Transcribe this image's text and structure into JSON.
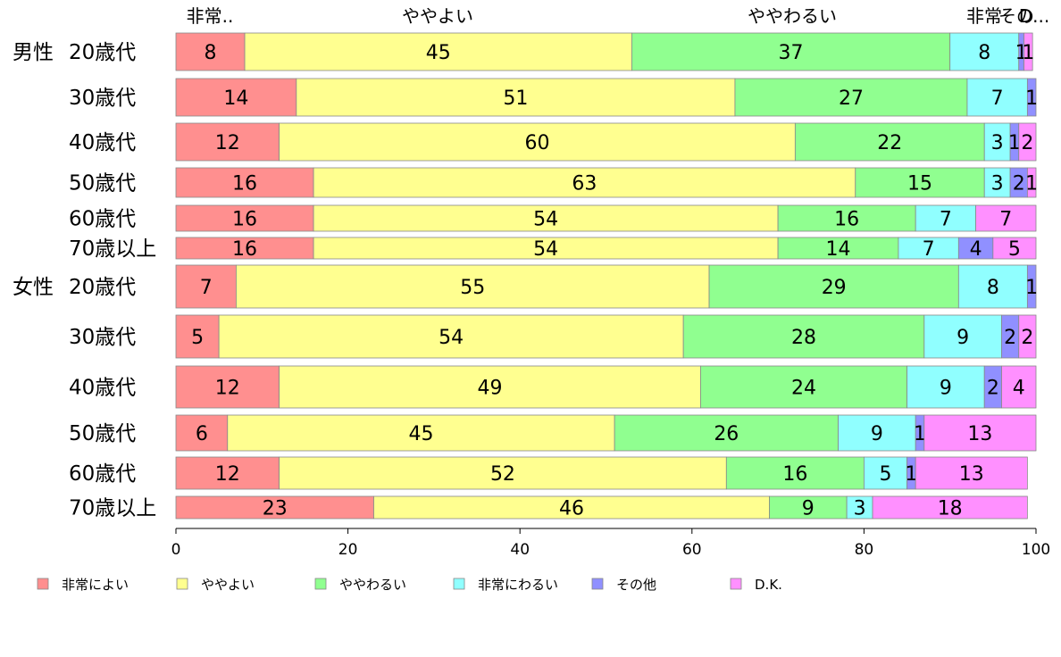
{
  "chart_data": {
    "type": "bar",
    "orientation": "horizontal",
    "stacked": true,
    "title": "",
    "xlabel": "",
    "ylabel": "",
    "xlim": [
      0,
      100
    ],
    "xticks": [
      "0",
      "20",
      "40",
      "60",
      "80",
      "100"
    ],
    "grid": false,
    "legend_position": "bottom",
    "top_labels": [
      "非常..",
      "ややよい",
      "ややわるい",
      "非常",
      "その",
      "D..."
    ],
    "groups": [
      "男性",
      "女性"
    ],
    "categories": [
      {
        "group": "男性",
        "label": "20歳代"
      },
      {
        "group": "",
        "label": "30歳代"
      },
      {
        "group": "",
        "label": "40歳代"
      },
      {
        "group": "",
        "label": "50歳代"
      },
      {
        "group": "",
        "label": "60歳代"
      },
      {
        "group": "",
        "label": "70歳以上"
      },
      {
        "group": "女性",
        "label": "20歳代"
      },
      {
        "group": "",
        "label": "30歳代"
      },
      {
        "group": "",
        "label": "40歳代"
      },
      {
        "group": "",
        "label": "50歳代"
      },
      {
        "group": "",
        "label": "60歳代"
      },
      {
        "group": "",
        "label": "70歳以上"
      }
    ],
    "series": [
      {
        "name": "非常によい",
        "color": "#ff8f8f",
        "values": [
          8,
          14,
          12,
          16,
          16,
          16,
          7,
          5,
          12,
          6,
          12,
          23
        ]
      },
      {
        "name": "ややよい",
        "color": "#ffff90",
        "values": [
          45,
          51,
          60,
          63,
          54,
          54,
          55,
          54,
          49,
          45,
          52,
          46
        ]
      },
      {
        "name": "ややわるい",
        "color": "#90ff90",
        "values": [
          37,
          27,
          22,
          15,
          16,
          14,
          29,
          28,
          24,
          26,
          16,
          9
        ]
      },
      {
        "name": "非常にわるい",
        "color": "#90ffff",
        "values": [
          8,
          7,
          3,
          3,
          7,
          7,
          8,
          9,
          9,
          9,
          5,
          3
        ]
      },
      {
        "name": "その他",
        "color": "#9090ff",
        "values": [
          0.6,
          1,
          1,
          2,
          0,
          4,
          1,
          2,
          2,
          1,
          1,
          0
        ]
      },
      {
        "name": "D.K.",
        "color": "#ff90ff",
        "values": [
          1,
          0,
          2,
          1,
          7,
          5,
          0,
          2,
          4,
          13,
          13,
          18
        ]
      }
    ],
    "data_labels": [
      [
        "8",
        "45",
        "37",
        "8",
        "1",
        "1"
      ],
      [
        "14",
        "51",
        "27",
        "7",
        "1",
        ""
      ],
      [
        "12",
        "60",
        "22",
        "3",
        "1",
        "2"
      ],
      [
        "16",
        "63",
        "15",
        "3",
        "2",
        "1"
      ],
      [
        "16",
        "54",
        "16",
        "7",
        "",
        "7"
      ],
      [
        "16",
        "54",
        "14",
        "7",
        "4",
        "5"
      ],
      [
        "7",
        "55",
        "29",
        "8",
        "1",
        ""
      ],
      [
        "5",
        "54",
        "28",
        "9",
        "2",
        "2"
      ],
      [
        "12",
        "49",
        "24",
        "9",
        "2",
        "4"
      ],
      [
        "6",
        "45",
        "26",
        "9",
        "1",
        "13"
      ],
      [
        "12",
        "52",
        "16",
        "5",
        "1",
        "13"
      ],
      [
        "23",
        "46",
        "9",
        "3",
        "",
        "18"
      ]
    ]
  }
}
